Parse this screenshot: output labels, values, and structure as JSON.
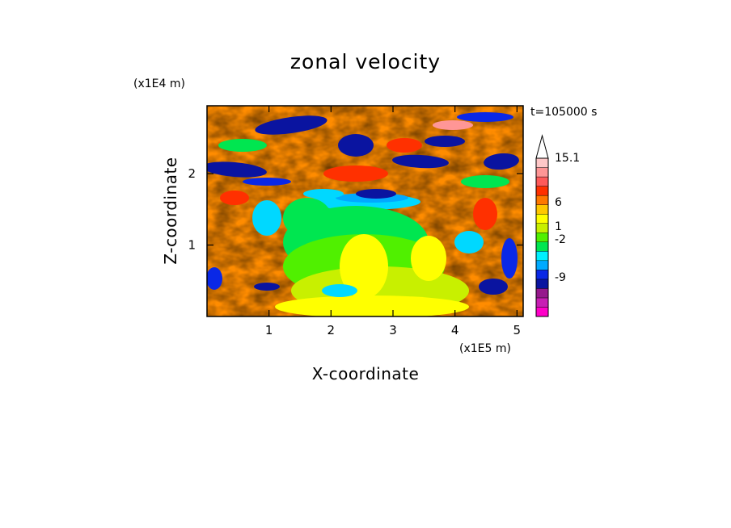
{
  "chart_data": {
    "type": "heatmap",
    "title": "zonal velocity",
    "xlabel": "X-coordinate",
    "ylabel": "Z-coordinate",
    "x_unit": "(x1E5 m)",
    "y_unit": "(x1E4 m)",
    "time_label": "t=105000 s",
    "xlim": [
      0,
      5.1
    ],
    "ylim": [
      0,
      2.95
    ],
    "x_ticks": [
      "1",
      "2",
      "3",
      "4",
      "5"
    ],
    "y_ticks": [
      "1",
      "2"
    ],
    "colorbar": {
      "labels": [
        "15.1",
        "6",
        "1",
        "-2",
        "-9"
      ],
      "colors": [
        "#ff00c8",
        "#c81eb4",
        "#96188c",
        "#0a14a0",
        "#0a28e6",
        "#00aaff",
        "#00f0ff",
        "#00e650",
        "#50f000",
        "#c8f000",
        "#ffff00",
        "#ffc800",
        "#ff7800",
        "#ff3000",
        "#ff5a5a",
        "#ff9696",
        "#ffc8c8"
      ]
    },
    "grid": false
  }
}
